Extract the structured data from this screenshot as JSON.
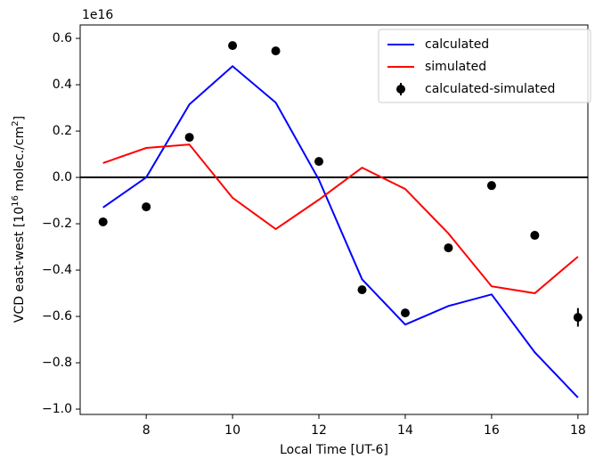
{
  "chart_data": {
    "type": "line",
    "offset_text": "1e16",
    "xlabel": "Local Time [UT-6]",
    "ylabel": [
      "VCD east-west [10",
      "16",
      " molec./cm",
      "2",
      "]"
    ],
    "x": [
      7,
      8,
      9,
      10,
      11,
      12,
      13,
      14,
      15,
      16,
      17,
      18
    ],
    "series": [
      {
        "name": "calculated",
        "color": "#0000ff",
        "style": "line",
        "values": [
          -0.13,
          0.0,
          0.315,
          0.48,
          0.323,
          -0.01,
          -0.44,
          -0.635,
          -0.555,
          -0.505,
          -0.755,
          -0.95
        ]
      },
      {
        "name": "simulated",
        "color": "#ff0000",
        "style": "line",
        "values": [
          0.062,
          0.127,
          0.142,
          -0.088,
          -0.223,
          -0.096,
          0.042,
          -0.05,
          -0.242,
          -0.47,
          -0.5,
          -0.342
        ]
      },
      {
        "name": "calculated-simulated",
        "color": "#000000",
        "style": "errorbar",
        "values": [
          -0.192,
          -0.127,
          0.173,
          0.569,
          0.546,
          0.069,
          -0.485,
          -0.585,
          -0.304,
          -0.035,
          -0.25,
          -0.604
        ],
        "errors": [
          0.015,
          0.01,
          0.01,
          0.01,
          0.01,
          0.01,
          0.01,
          0.01,
          0.01,
          0.01,
          0.015,
          0.04
        ]
      }
    ],
    "hline": 0,
    "xlim": [
      6.47,
      18.23
    ],
    "ylim": [
      -1.023,
      0.658
    ],
    "xticks": [
      8,
      10,
      12,
      14,
      16,
      18
    ],
    "yticks": [
      0.6,
      0.4,
      0.2,
      {
        "value": 0,
        "label": "0.0"
      },
      {
        "value": -0.2,
        "label": "−0.2"
      },
      {
        "value": -0.4,
        "label": "−0.4"
      },
      {
        "value": -0.6,
        "label": "−0.6"
      },
      {
        "value": -0.8,
        "label": "−0.8"
      },
      {
        "value": -1.0,
        "label": "−1.0"
      }
    ],
    "legend": "upper right"
  }
}
